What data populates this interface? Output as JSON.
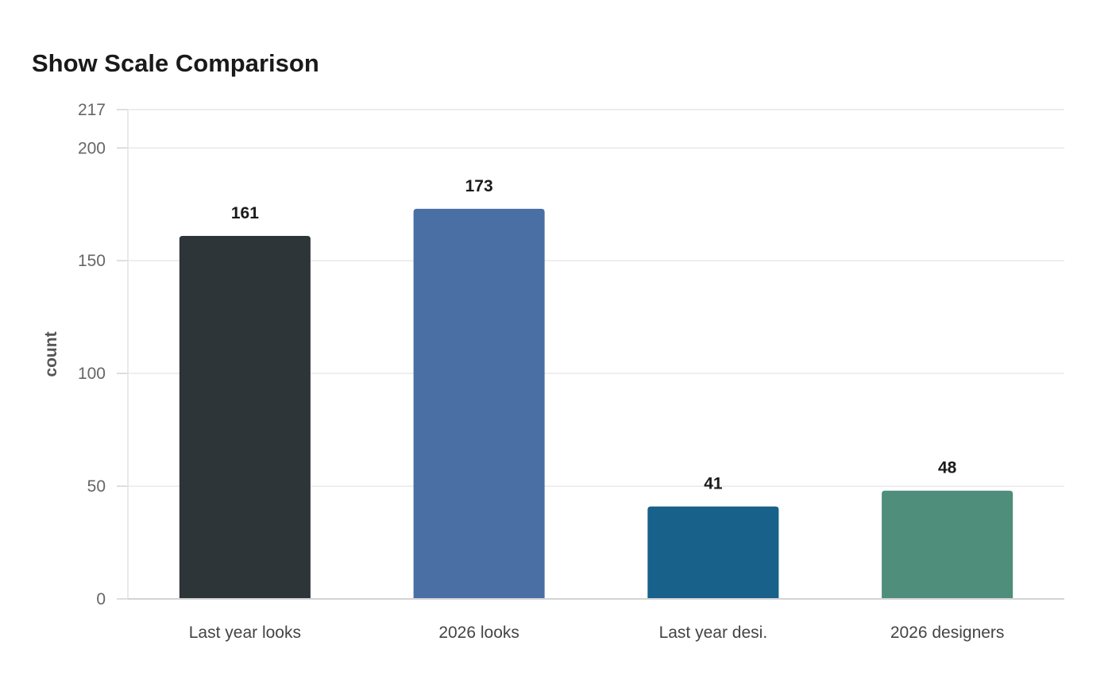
{
  "chart_data": {
    "type": "bar",
    "title": "Show Scale Comparison",
    "xlabel": "",
    "ylabel": "count",
    "categories": [
      "Last year looks",
      "2026 looks",
      "Last year desi.",
      "2026 designers"
    ],
    "values": [
      161,
      173,
      41,
      48
    ],
    "data_labels": [
      "161",
      "173",
      "41",
      "48"
    ],
    "colors": [
      "#2e3538",
      "#4a6fa5",
      "#17618a",
      "#4f8e7b"
    ],
    "ylim": [
      0,
      217
    ],
    "yticks": [
      0,
      50,
      100,
      150,
      200,
      217
    ],
    "ytick_labels": [
      "0",
      "50",
      "100",
      "150",
      "200",
      "217"
    ],
    "grid": true,
    "legend": "none"
  }
}
